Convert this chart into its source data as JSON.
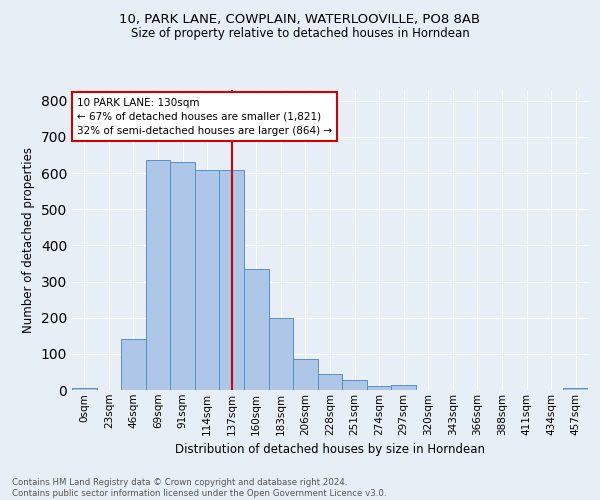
{
  "title1": "10, PARK LANE, COWPLAIN, WATERLOOVILLE, PO8 8AB",
  "title2": "Size of property relative to detached houses in Horndean",
  "xlabel": "Distribution of detached houses by size in Horndean",
  "ylabel": "Number of detached properties",
  "bin_labels": [
    "0sqm",
    "23sqm",
    "46sqm",
    "69sqm",
    "91sqm",
    "114sqm",
    "137sqm",
    "160sqm",
    "183sqm",
    "206sqm",
    "228sqm",
    "251sqm",
    "274sqm",
    "297sqm",
    "320sqm",
    "343sqm",
    "366sqm",
    "388sqm",
    "411sqm",
    "434sqm",
    "457sqm"
  ],
  "bar_heights": [
    5,
    0,
    142,
    635,
    630,
    610,
    610,
    335,
    200,
    85,
    44,
    27,
    11,
    13,
    0,
    0,
    0,
    0,
    0,
    0,
    5
  ],
  "bar_color": "#aec6e8",
  "bar_edge_color": "#5a8fc2",
  "vline_x": 6,
  "vline_color": "#cc0000",
  "annotation_text": "10 PARK LANE: 130sqm\n← 67% of detached houses are smaller (1,821)\n32% of semi-detached houses are larger (864) →",
  "annotation_box_color": "#ffffff",
  "annotation_box_edge": "#cc0000",
  "ylim": [
    0,
    830
  ],
  "yticks": [
    0,
    100,
    200,
    300,
    400,
    500,
    600,
    700,
    800
  ],
  "background_color": "#e8eef5",
  "grid_color": "#ffffff",
  "footer": "Contains HM Land Registry data © Crown copyright and database right 2024.\nContains public sector information licensed under the Open Government Licence v3.0."
}
